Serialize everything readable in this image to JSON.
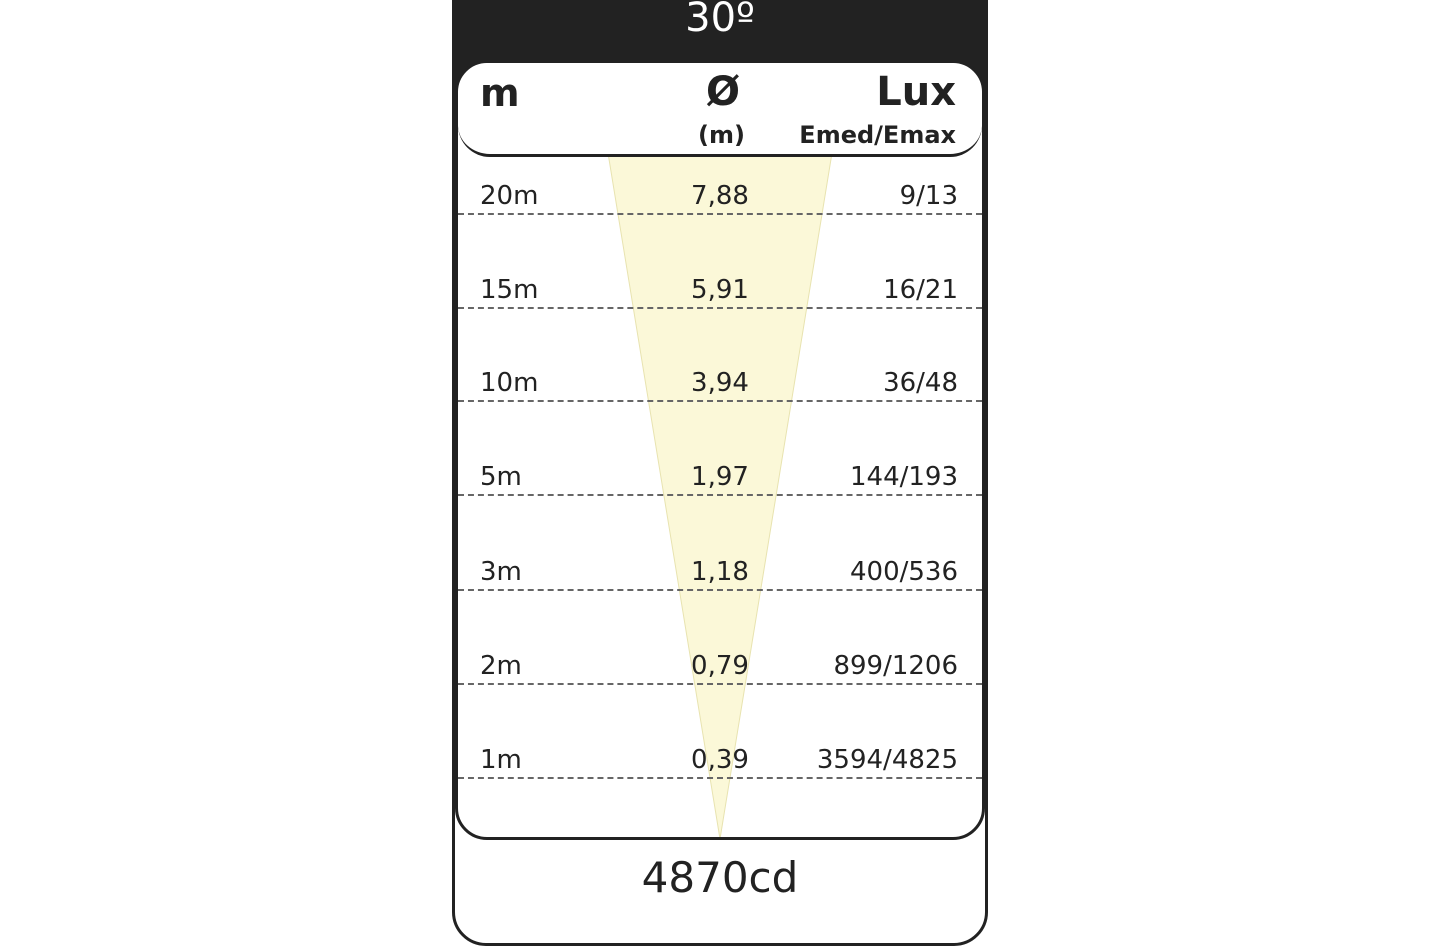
{
  "beam_angle": "30º",
  "header": {
    "distance": "m",
    "diameter_symbol": "Ø",
    "diameter_unit": "(m)",
    "lux": "Lux",
    "lux_sub": "Emed/Emax"
  },
  "rows": [
    {
      "distance": "20m",
      "diameter": "7,88",
      "lux": "9/13"
    },
    {
      "distance": "15m",
      "diameter": "5,91",
      "lux": "16/21"
    },
    {
      "distance": "10m",
      "diameter": "3,94",
      "lux": "36/48"
    },
    {
      "distance": "5m",
      "diameter": "1,97",
      "lux": "144/193"
    },
    {
      "distance": "3m",
      "diameter": "1,18",
      "lux": "400/536"
    },
    {
      "distance": "2m",
      "diameter": "0,79",
      "lux": "899/1206"
    },
    {
      "distance": "1m",
      "diameter": "0,39",
      "lux": "3594/4825"
    }
  ],
  "intensity": "4870cd",
  "colors": {
    "cone": "#fbf8d8",
    "frame": "#222222"
  }
}
